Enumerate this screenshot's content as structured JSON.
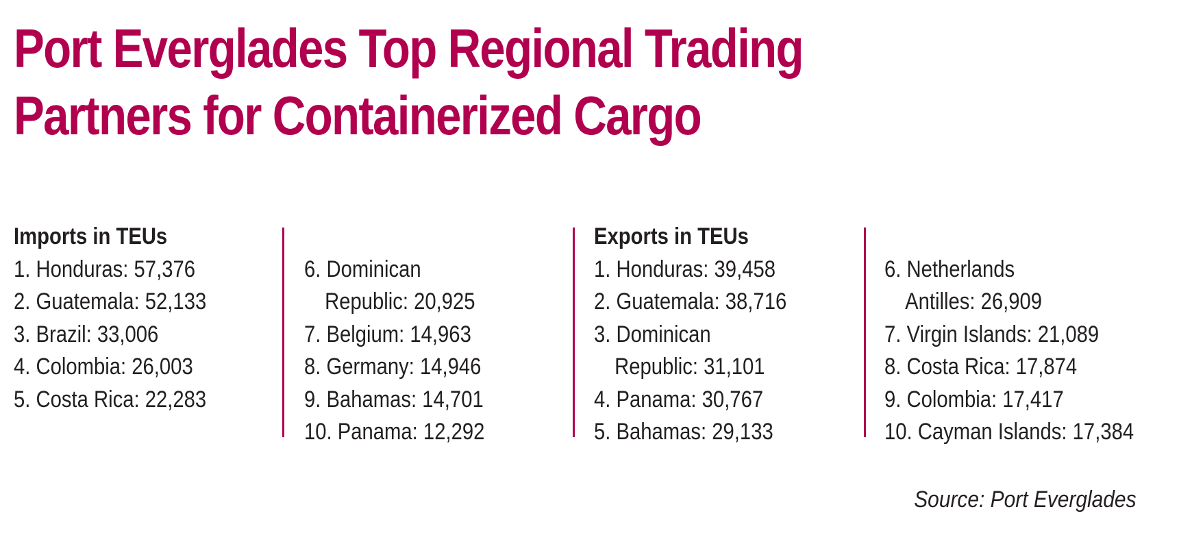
{
  "title": {
    "line1": "Port Everglades Top Regional Trading",
    "line2": "Partners for Containerized Cargo"
  },
  "imports": {
    "heading": "Imports in TEUs",
    "items": [
      "1. Honduras:  57,376",
      "2. Guatemala:  52,133",
      "3. Brazil:  33,006",
      "4. Colombia:  26,003",
      "5. Costa Rica:  22,283"
    ],
    "items_cont": [
      "6. Dominican",
      "Republic:  20,925",
      "7. Belgium:  14,963",
      "8. Germany:  14,946",
      "9. Bahamas:  14,701",
      "10. Panama: 12,292"
    ]
  },
  "exports": {
    "heading": "Exports in TEUs",
    "items": [
      "1. Honduras: 39,458",
      "2. Guatemala: 38,716",
      "3. Dominican",
      "Republic: 31,101",
      "4. Panama: 30,767",
      "5. Bahamas: 29,133"
    ],
    "items_cont": [
      "6. Netherlands",
      "Antilles: 26,909",
      "7. Virgin Islands: 21,089",
      "8. Costa Rica: 17,874",
      "9. Colombia: 17,417",
      "10. Cayman Islands: 17,384"
    ]
  },
  "source": "Source: Port Everglades",
  "colors": {
    "accent": "#b0004e",
    "text": "#231f20"
  }
}
